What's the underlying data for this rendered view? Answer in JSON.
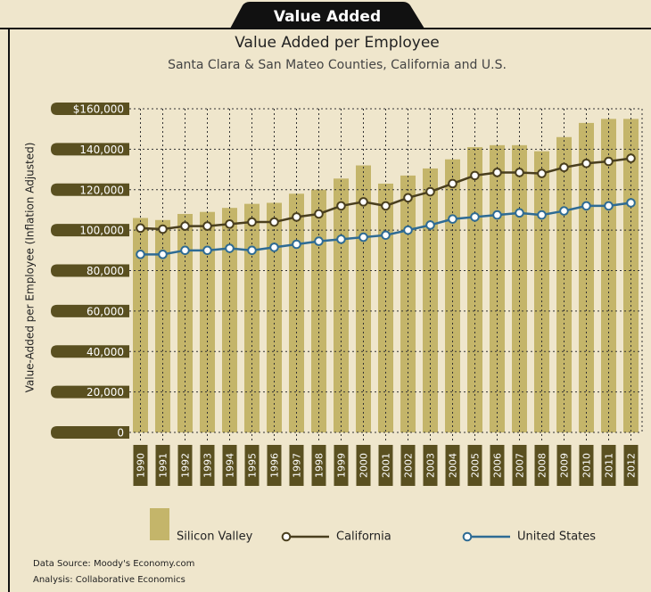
{
  "header": "Value Added",
  "chart_data": {
    "type": "bar",
    "title": "Value Added per Employee",
    "subtitle": "Santa Clara & San Mateo Counties, California and U.S.",
    "y_label": "Value-Added per Employee (Inflation Adjusted)",
    "categories": [
      "1990",
      "1991",
      "1992",
      "1993",
      "1994",
      "1995",
      "1996",
      "1997",
      "1998",
      "1999",
      "2000",
      "2001",
      "2002",
      "2003",
      "2004",
      "2005",
      "2006",
      "2007",
      "2008",
      "2009",
      "2010",
      "2011",
      "2012"
    ],
    "series": [
      {
        "name": "Silicon Valley",
        "type": "bar",
        "color": "#c4b56a",
        "values": [
          106000,
          105000,
          108000,
          109000,
          111000,
          113000,
          113500,
          118000,
          120000,
          125500,
          132000,
          123000,
          127000,
          130500,
          135000,
          141000,
          142000,
          142000,
          139000,
          146000,
          153000,
          155000,
          155000
        ]
      },
      {
        "name": "California",
        "type": "line",
        "color": "#4a3f1e",
        "values": [
          101000,
          100500,
          102000,
          102000,
          103000,
          104000,
          104000,
          106500,
          108000,
          112000,
          114000,
          112000,
          116000,
          119000,
          123000,
          127000,
          128500,
          128500,
          128000,
          131000,
          133000,
          134000,
          135500
        ]
      },
      {
        "name": "United States",
        "type": "line",
        "color": "#2e6b94",
        "values": [
          88000,
          88000,
          90000,
          90000,
          91000,
          90000,
          91500,
          93000,
          94500,
          95500,
          96500,
          97500,
          100000,
          102500,
          105500,
          106500,
          107500,
          108500,
          107500,
          109500,
          112000,
          112000,
          113500
        ]
      }
    ],
    "ylim": [
      0,
      160000
    ],
    "yticks": [
      0,
      {
        "value": 20000,
        "label": "20,000"
      },
      {
        "value": 40000,
        "label": "40,000"
      },
      {
        "value": 60000,
        "label": "60,000"
      },
      {
        "value": 80000,
        "label": "80,000"
      },
      {
        "value": 100000,
        "label": "100,000"
      },
      {
        "value": 120000,
        "label": "120,000"
      },
      {
        "value": 140000,
        "label": "140,000"
      },
      {
        "value": 160000,
        "label": "$160,000"
      }
    ],
    "grid": true,
    "notes": [
      "Data Source: Moody's Economy.com",
      "Analysis: Collaborative Economics"
    ]
  }
}
